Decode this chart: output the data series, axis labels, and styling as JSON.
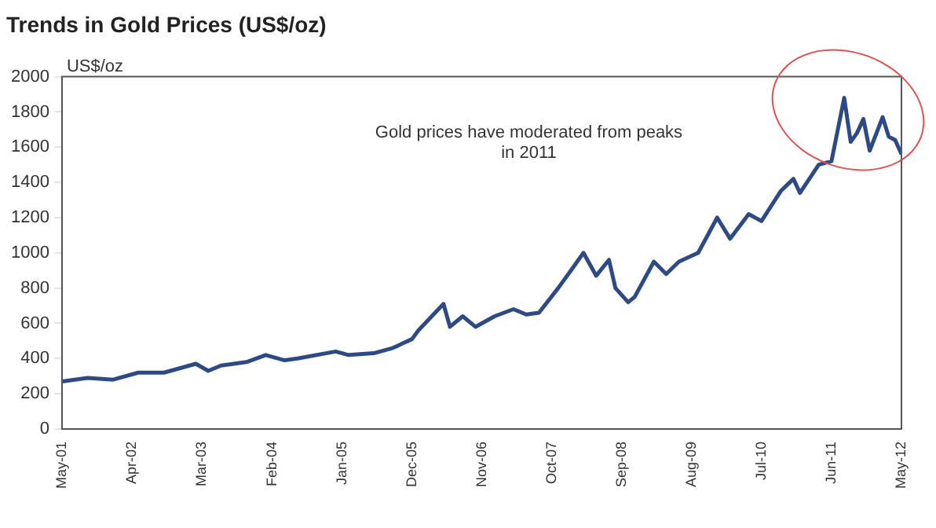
{
  "chart_data": {
    "type": "line",
    "title": "Trends in Gold Prices (US$/oz)",
    "ylabel": "US$/oz",
    "annotations": [
      "Gold prices have moderated from peaks in 2011"
    ],
    "xlim": [
      "2001-05",
      "2012-05"
    ],
    "xticks": [
      {
        "value": "2001-05",
        "label": "May-01"
      },
      {
        "value": "2002-04",
        "label": "Apr-02"
      },
      {
        "value": "2003-03",
        "label": "Mar-03"
      },
      {
        "value": "2004-02",
        "label": "Feb-04"
      },
      {
        "value": "2005-01",
        "label": "Jan-05"
      },
      {
        "value": "2005-12",
        "label": "Dec-05"
      },
      {
        "value": "2006-11",
        "label": "Nov-06"
      },
      {
        "value": "2007-10",
        "label": "Oct-07"
      },
      {
        "value": "2008-09",
        "label": "Sep-08"
      },
      {
        "value": "2009-08",
        "label": "Aug-09"
      },
      {
        "value": "2010-07",
        "label": "Jul-10"
      },
      {
        "value": "2011-06",
        "label": "Jun-11"
      },
      {
        "value": "2012-05",
        "label": "May-12"
      }
    ],
    "ylim": [
      0,
      2000
    ],
    "yticks": [
      0,
      200,
      400,
      600,
      800,
      1000,
      1200,
      1400,
      1600,
      1800,
      2000
    ],
    "grid": false,
    "legend": false,
    "marker": "none",
    "line_style": "solid",
    "x": [
      "2001-05",
      "2001-09",
      "2002-01",
      "2002-05",
      "2002-09",
      "2003-02",
      "2003-04",
      "2003-06",
      "2003-10",
      "2004-01",
      "2004-04",
      "2004-06",
      "2004-12",
      "2005-02",
      "2005-06",
      "2005-09",
      "2005-12",
      "2006-01",
      "2006-05",
      "2006-06",
      "2006-08",
      "2006-10",
      "2007-01",
      "2007-04",
      "2007-06",
      "2007-08",
      "2007-11",
      "2008-01",
      "2008-03",
      "2008-05",
      "2008-07",
      "2008-08",
      "2008-10",
      "2008-11",
      "2009-02",
      "2009-04",
      "2009-06",
      "2009-09",
      "2009-12",
      "2010-02",
      "2010-05",
      "2010-07",
      "2010-10",
      "2010-12",
      "2011-01",
      "2011-04",
      "2011-06",
      "2011-08",
      "2011-09",
      "2011-10",
      "2011-11",
      "2011-12",
      "2012-02",
      "2012-03",
      "2012-04",
      "2012-05"
    ],
    "series": [
      {
        "color": "#2e4a86",
        "values": [
          270,
          290,
          280,
          320,
          320,
          370,
          330,
          360,
          380,
          420,
          390,
          400,
          440,
          420,
          430,
          460,
          510,
          560,
          710,
          580,
          640,
          580,
          640,
          680,
          650,
          660,
          800,
          900,
          1000,
          870,
          960,
          800,
          720,
          750,
          950,
          880,
          950,
          1000,
          1200,
          1080,
          1220,
          1180,
          1350,
          1420,
          1340,
          1500,
          1520,
          1880,
          1630,
          1680,
          1760,
          1580,
          1770,
          1660,
          1640,
          1560
        ]
      }
    ]
  }
}
